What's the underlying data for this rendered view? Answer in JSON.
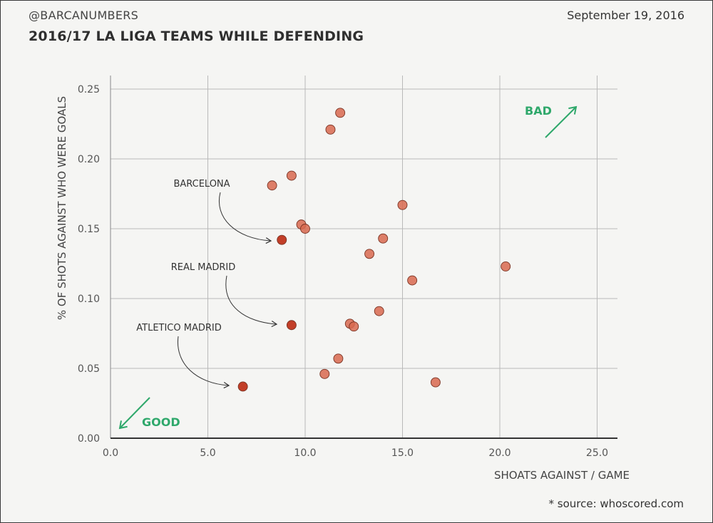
{
  "header": {
    "handle": "@BARCANUMBERS",
    "date": "September 19, 2016",
    "title": "2016/17 LA LIGA TEAMS WHILE DEFENDING"
  },
  "footer": {
    "source": "* source: whoscored.com"
  },
  "colors": {
    "point": "#d8694f",
    "point_highlight": "#c23e28",
    "point_stroke": "#7a3424",
    "grid": "#b9b9b9",
    "accent_green": "#2fa86b"
  },
  "chart_data": {
    "type": "scatter",
    "title": "2016/17 LA LIGA TEAMS WHILE DEFENDING",
    "xlabel": "SHOATS AGAINST / GAME",
    "ylabel": "% OF SHOTS AGAINST WHO WERE GOALS",
    "xlim": [
      0,
      26
    ],
    "ylim": [
      0,
      0.25
    ],
    "xticks": [
      "0.0",
      "5.0",
      "10.0",
      "15.0",
      "20.0",
      "25.0"
    ],
    "xtick_values": [
      0,
      5,
      10,
      15,
      20,
      25
    ],
    "yticks": [
      "0.00",
      "0.05",
      "0.10",
      "0.15",
      "0.20",
      "0.25"
    ],
    "ytick_values": [
      0,
      0.05,
      0.1,
      0.15,
      0.2,
      0.25
    ],
    "grid": true,
    "points": [
      {
        "x": 11.8,
        "y": 0.233
      },
      {
        "x": 11.3,
        "y": 0.221
      },
      {
        "x": 9.3,
        "y": 0.188
      },
      {
        "x": 8.3,
        "y": 0.181
      },
      {
        "x": 15.0,
        "y": 0.167
      },
      {
        "x": 9.8,
        "y": 0.153
      },
      {
        "x": 10.0,
        "y": 0.15
      },
      {
        "x": 14.0,
        "y": 0.143
      },
      {
        "x": 8.8,
        "y": 0.142,
        "team": "BARCELONA",
        "highlight": true
      },
      {
        "x": 13.3,
        "y": 0.132
      },
      {
        "x": 20.3,
        "y": 0.123
      },
      {
        "x": 15.5,
        "y": 0.113
      },
      {
        "x": 13.8,
        "y": 0.091
      },
      {
        "x": 12.3,
        "y": 0.082
      },
      {
        "x": 12.5,
        "y": 0.08
      },
      {
        "x": 9.3,
        "y": 0.081,
        "team": "REAL MADRID",
        "highlight": true
      },
      {
        "x": 11.7,
        "y": 0.057
      },
      {
        "x": 11.0,
        "y": 0.046
      },
      {
        "x": 16.7,
        "y": 0.04
      },
      {
        "x": 6.8,
        "y": 0.037,
        "team": "ATLETICO MADRID",
        "highlight": true
      }
    ],
    "annotations": [
      {
        "label": "BARCELONA"
      },
      {
        "label": "REAL MADRID"
      },
      {
        "label": "ATLETICO MADRID"
      }
    ],
    "corner_labels": {
      "bad": "BAD",
      "good": "GOOD"
    }
  }
}
